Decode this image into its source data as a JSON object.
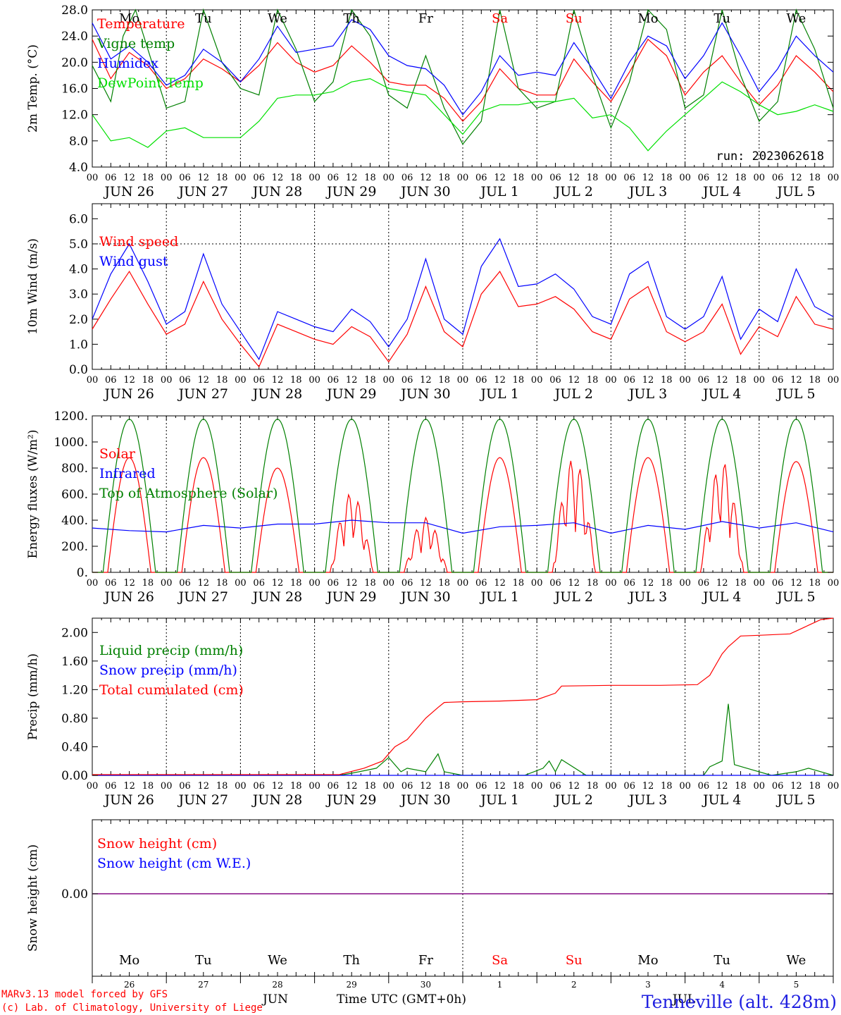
{
  "meteogram": {
    "run_label": "run: 2023062618",
    "credit_line1": "MARv3.13 model forced by GFS",
    "credit_line2": "(c) Lab. of Climatology, University of Liege",
    "station_title": "Tenneville (alt. 428m)",
    "x_axis_title": "Time UTC (GMT+0h)",
    "month_label_left": "JUN",
    "month_label_right": "JUL",
    "hour_ticks": [
      "00",
      "06",
      "12",
      "18"
    ],
    "hour_tick_end": "00",
    "day_labels": [
      "JUN 26",
      "JUN 27",
      "JUN 28",
      "JUN 29",
      "JUN 30",
      "JUL  1",
      "JUL  2",
      "JUL  3",
      "JUL  4",
      "JUL  5"
    ],
    "weekdays": [
      "Mo",
      "Tu",
      "We",
      "Th",
      "Fr",
      "Sa",
      "Su",
      "Mo",
      "Tu",
      "We"
    ],
    "weekday_colors": [
      "#000000",
      "#000000",
      "#000000",
      "#000000",
      "#000000",
      "#ff0000",
      "#ff0000",
      "#000000",
      "#000000",
      "#000000"
    ],
    "day_numbers": [
      "26",
      "27",
      "28",
      "29",
      "30",
      "1",
      "2",
      "3",
      "4",
      "5"
    ]
  },
  "colors": {
    "red": "#ff0000",
    "dark_green": "#008000",
    "blue": "#0000ff",
    "light_green": "#00e000",
    "purple": "#800080",
    "grid": "#000000"
  },
  "chart_data": [
    {
      "type": "line",
      "ylabel": "2m Temp. (°C)",
      "ylim": [
        4,
        28
      ],
      "yticks": [
        "4.0",
        "8.0",
        "12.0",
        "16.0",
        "20.0",
        "24.0",
        "28.0"
      ],
      "x_unit": "hours since JUN 26 00 UTC",
      "series": [
        {
          "name": "Temperature",
          "color": "#ff0000",
          "x": [
            0,
            6,
            12,
            18,
            24,
            30,
            36,
            42,
            48,
            54,
            60,
            66,
            72,
            78,
            84,
            90,
            96,
            102,
            108,
            114,
            120,
            126,
            132,
            138,
            144,
            150,
            156,
            162,
            168,
            174,
            180,
            186,
            192,
            198,
            204,
            210,
            216,
            222,
            228,
            234,
            240
          ],
          "y": [
            23.5,
            17.5,
            21.5,
            19.5,
            16,
            17.5,
            20.5,
            19,
            17,
            19.5,
            23,
            20,
            18.5,
            19.5,
            22.5,
            20,
            17,
            16.5,
            16.5,
            14.5,
            11,
            14,
            19,
            16,
            15,
            15,
            20.5,
            17,
            14,
            18.5,
            23.5,
            21,
            15,
            18.5,
            21,
            17,
            13.5,
            16.5,
            21,
            18.5,
            15.5
          ]
        },
        {
          "name": "Vigne temp",
          "color": "#008000",
          "x": [
            0,
            6,
            10,
            14,
            18,
            22,
            24,
            30,
            36,
            42,
            48,
            54,
            60,
            66,
            72,
            78,
            84,
            90,
            96,
            102,
            108,
            114,
            120,
            126,
            132,
            138,
            144,
            150,
            156,
            162,
            168,
            174,
            180,
            186,
            192,
            198,
            204,
            210,
            216,
            222,
            228,
            234,
            240
          ],
          "y": [
            19.5,
            14,
            24,
            28,
            22,
            16,
            13,
            14,
            28,
            20,
            16,
            15,
            28,
            22,
            14,
            17,
            28,
            24,
            15,
            13,
            21,
            13,
            7.5,
            11,
            28,
            16,
            13,
            14,
            28,
            18,
            10,
            17,
            28,
            25,
            13,
            15,
            28,
            18,
            11,
            14,
            28,
            22,
            13
          ]
        },
        {
          "name": "Humidex",
          "color": "#0000ff",
          "x": [
            0,
            6,
            12,
            18,
            24,
            30,
            36,
            42,
            48,
            54,
            60,
            66,
            72,
            78,
            84,
            90,
            96,
            102,
            108,
            114,
            120,
            126,
            132,
            138,
            144,
            150,
            156,
            162,
            168,
            174,
            180,
            186,
            192,
            198,
            204,
            210,
            216,
            222,
            228,
            234,
            240
          ],
          "y": [
            26,
            20.5,
            22.5,
            20,
            16.5,
            18,
            22,
            20,
            17,
            20.5,
            25.5,
            21.5,
            22,
            22.5,
            26.5,
            25,
            21,
            19.5,
            19,
            16.5,
            12,
            15.5,
            21,
            18,
            18.5,
            18,
            23,
            19,
            14.5,
            20,
            24,
            22.5,
            17.5,
            21,
            26,
            21,
            15.5,
            19,
            24,
            21,
            18.5
          ]
        },
        {
          "name": "DewPoint Temp",
          "color": "#00e000",
          "x": [
            0,
            6,
            12,
            18,
            24,
            30,
            36,
            42,
            48,
            54,
            60,
            66,
            72,
            78,
            84,
            90,
            96,
            102,
            108,
            114,
            120,
            126,
            132,
            138,
            144,
            150,
            156,
            162,
            168,
            174,
            180,
            186,
            192,
            198,
            204,
            210,
            216,
            222,
            228,
            234,
            240
          ],
          "y": [
            12,
            8,
            8.5,
            7,
            9.5,
            10,
            8.5,
            8.5,
            8.5,
            11,
            14.5,
            15,
            15,
            15.5,
            17,
            17.5,
            16,
            15.5,
            15,
            12,
            9,
            12.5,
            13.5,
            13.5,
            14,
            14,
            14.5,
            11.5,
            12,
            10,
            6.5,
            9.5,
            12,
            14.5,
            17,
            15.5,
            13.5,
            12,
            12.5,
            13.5,
            12.5
          ]
        }
      ]
    },
    {
      "type": "line",
      "ylabel": "10m Wind (m/s)",
      "ylim": [
        0,
        6.6
      ],
      "yticks": [
        "0.0",
        "1.0",
        "2.0",
        "3.0",
        "4.0",
        "5.0",
        "6.0"
      ],
      "reference_line": 5.0,
      "series": [
        {
          "name": "Wind speed",
          "color": "#ff0000",
          "x": [
            0,
            6,
            12,
            18,
            24,
            30,
            36,
            42,
            48,
            54,
            60,
            66,
            72,
            78,
            84,
            90,
            96,
            102,
            108,
            114,
            120,
            126,
            132,
            138,
            144,
            150,
            156,
            162,
            168,
            174,
            180,
            186,
            192,
            198,
            204,
            210,
            216,
            222,
            228,
            234,
            240
          ],
          "y": [
            1.6,
            2.8,
            3.9,
            2.6,
            1.4,
            1.8,
            3.5,
            2.0,
            1.0,
            0.1,
            1.8,
            1.5,
            1.2,
            1.0,
            1.7,
            1.3,
            0.3,
            1.4,
            3.3,
            1.5,
            0.9,
            3.0,
            3.9,
            2.5,
            2.6,
            2.9,
            2.4,
            1.5,
            1.2,
            2.8,
            3.3,
            1.5,
            1.1,
            1.5,
            2.6,
            0.6,
            1.7,
            1.3,
            2.9,
            1.8,
            1.6
          ]
        },
        {
          "name": "Wind gust",
          "color": "#0000ff",
          "x": [
            0,
            6,
            12,
            18,
            24,
            30,
            36,
            42,
            48,
            54,
            60,
            66,
            72,
            78,
            84,
            90,
            96,
            102,
            108,
            114,
            120,
            126,
            132,
            138,
            144,
            150,
            156,
            162,
            168,
            174,
            180,
            186,
            192,
            198,
            204,
            210,
            216,
            222,
            228,
            234,
            240
          ],
          "y": [
            2.0,
            3.8,
            5.0,
            3.5,
            1.8,
            2.3,
            4.6,
            2.6,
            1.5,
            0.4,
            2.3,
            2.0,
            1.7,
            1.5,
            2.4,
            1.9,
            0.9,
            2.0,
            4.4,
            2.0,
            1.4,
            4.1,
            5.2,
            3.3,
            3.4,
            3.8,
            3.2,
            2.1,
            1.8,
            3.8,
            4.3,
            2.1,
            1.6,
            2.1,
            3.7,
            1.2,
            2.4,
            1.9,
            4.0,
            2.5,
            2.1
          ]
        }
      ]
    },
    {
      "type": "line",
      "ylabel": "Energy fluxes (W/m²)",
      "ylim": [
        0,
        1200
      ],
      "yticks": [
        "0.",
        "200.",
        "400.",
        "600.",
        "800.",
        "1000.",
        "1200."
      ],
      "series": [
        {
          "name": "Solar",
          "color": "#ff0000",
          "daily_peaks": [
            880,
            880,
            800,
            610,
            420,
            880,
            880,
            880,
            850,
            850
          ],
          "x": [],
          "y": []
        },
        {
          "name": "Infrared",
          "color": "#0000ff",
          "x": [
            0,
            12,
            24,
            36,
            48,
            60,
            72,
            84,
            96,
            108,
            120,
            132,
            144,
            156,
            168,
            180,
            192,
            204,
            216,
            228,
            240
          ],
          "y": [
            340,
            320,
            310,
            360,
            340,
            370,
            370,
            400,
            380,
            380,
            300,
            350,
            360,
            380,
            300,
            360,
            330,
            390,
            340,
            380,
            310
          ]
        },
        {
          "name": "Top of Atmosphere (Solar)",
          "color": "#008000",
          "daily_peak": 1175,
          "daylight_hours": [
            3.5,
            20.5
          ],
          "x": [],
          "y": []
        }
      ]
    },
    {
      "type": "line",
      "ylabel": "Precip (mm/h)",
      "ylim": [
        0,
        2.2
      ],
      "yticks": [
        "0.00",
        "0.40",
        "0.80",
        "1.20",
        "1.60",
        "2.00"
      ],
      "series": [
        {
          "name": "Liquid precip (mm/h)",
          "color": "#008000",
          "x": [
            0,
            80,
            84,
            92,
            96,
            100,
            102,
            108,
            112,
            114,
            120,
            140,
            146,
            148,
            150,
            152,
            160,
            198,
            200,
            204,
            206,
            208,
            212,
            220,
            228,
            232,
            236,
            240
          ],
          "y": [
            0,
            0,
            0.03,
            0.1,
            0.25,
            0.05,
            0.1,
            0.05,
            0.3,
            0.05,
            0,
            0,
            0.1,
            0.2,
            0.05,
            0.22,
            0,
            0,
            0.12,
            0.2,
            1.0,
            0.15,
            0.1,
            0,
            0.05,
            0.1,
            0.05,
            0
          ]
        },
        {
          "name": "Snow precip (mm/h)",
          "color": "#0000ff",
          "x": [
            0,
            240
          ],
          "y": [
            0,
            0
          ]
        },
        {
          "name": "Total cumulated (cm)",
          "color": "#ff0000",
          "x": [
            0,
            80,
            88,
            94,
            98,
            102,
            108,
            112,
            114,
            120,
            132,
            144,
            150,
            152,
            168,
            184,
            196,
            200,
            204,
            206,
            210,
            216,
            226,
            232,
            236,
            240
          ],
          "y": [
            0.01,
            0.01,
            0.1,
            0.2,
            0.4,
            0.5,
            0.8,
            0.95,
            1.02,
            1.03,
            1.04,
            1.06,
            1.15,
            1.25,
            1.26,
            1.26,
            1.27,
            1.4,
            1.7,
            1.8,
            1.95,
            1.96,
            1.98,
            2.1,
            2.18,
            2.2
          ]
        }
      ]
    },
    {
      "type": "line",
      "ylabel": "Snow height (cm)",
      "yticks": [
        "0.00"
      ],
      "series": [
        {
          "name": "Snow height (cm)",
          "color": "#ff0000",
          "x": [
            0,
            240
          ],
          "y": [
            0,
            0
          ]
        },
        {
          "name": "Snow height (cm W.E.)",
          "color": "#0000ff",
          "x": [
            0,
            240
          ],
          "y": [
            0,
            0
          ]
        }
      ]
    }
  ]
}
